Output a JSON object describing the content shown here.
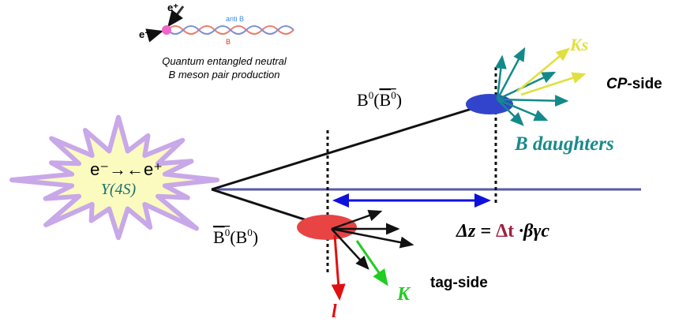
{
  "inset": {
    "e_plus": "e⁺",
    "e_minus": "e⁻",
    "anti_b": "anti B",
    "b": "B",
    "caption": [
      "Quantum entangled neutral",
      "B meson pair production"
    ]
  },
  "cp_meson": {
    "base": "B",
    "sup": "0",
    "open": "(",
    "alt_base": "B",
    "alt_sup": "0",
    "close": ")"
  },
  "tag_meson": {
    "base": "B",
    "sup": "0",
    "open": "(",
    "alt_base": "B",
    "alt_sup": "0",
    "close": ")"
  },
  "ks": "Ks",
  "cp_side": {
    "cp": "CP",
    "side": "-side"
  },
  "b_daughters": "B daughters",
  "collision": "e⁻→←e⁺",
  "resonance": "Υ(4S)",
  "formula": {
    "dz": "Δz = ",
    "dt": "Δt",
    "rest": " ·βγc"
  },
  "tag_side": "tag-side",
  "k": "K",
  "lepton": "l"
}
